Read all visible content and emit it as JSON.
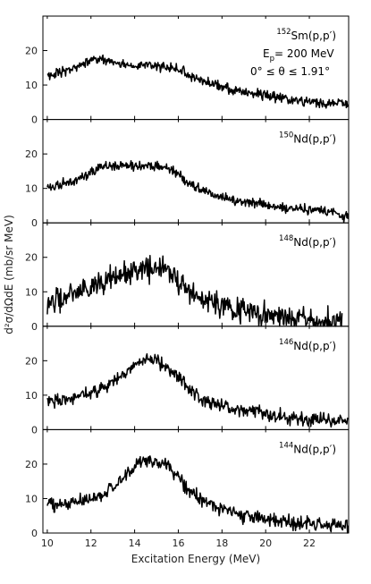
{
  "chart_data": {
    "type": "line",
    "xlabel": "Excitation Energy (MeV)",
    "ylabel": "d²σ/dΩdE (mb/sr MeV)",
    "xlim": [
      9.8,
      23.8
    ],
    "xticks": [
      10,
      12,
      14,
      16,
      18,
      20,
      22
    ],
    "grid": false,
    "legend": "none",
    "annotations": {
      "beam_energy_prefix": "E",
      "beam_energy_sub": "p",
      "beam_energy_value": "= 200 MeV",
      "angle_range": "0° ≤ θ ≤ 1.91°"
    },
    "panels": [
      {
        "label_mass": "152",
        "label_element": "Sm",
        "label_reaction": "(p,p′)",
        "ylim": [
          0,
          30
        ],
        "yticks": [
          0,
          10,
          20
        ],
        "x": [
          10,
          10.5,
          11,
          11.5,
          12,
          12.5,
          13,
          13.5,
          14,
          14.5,
          15,
          15.5,
          16,
          16.5,
          17,
          17.5,
          18,
          18.5,
          19,
          19.5,
          20,
          20.5,
          21,
          21.5,
          22,
          22.5,
          23,
          23.5,
          23.8
        ],
        "y": [
          12.5,
          13.5,
          14.5,
          15.5,
          17.5,
          17.5,
          16.5,
          16,
          15.5,
          15.5,
          15.5,
          15.5,
          14.5,
          13,
          11.5,
          10.5,
          9.5,
          8.5,
          8,
          7.5,
          7,
          6.5,
          6,
          5.5,
          5,
          4.8,
          4.5,
          4.5,
          4.5
        ],
        "noise": 1.0
      },
      {
        "label_mass": "150",
        "label_element": "Nd",
        "label_reaction": "(p,p′)",
        "ylim": [
          0,
          30
        ],
        "yticks": [
          0,
          10,
          20
        ],
        "x": [
          10,
          10.5,
          11,
          11.5,
          12,
          12.5,
          13,
          13.5,
          14,
          14.5,
          15,
          15.5,
          16,
          16.5,
          17,
          17.5,
          18,
          18.5,
          19,
          19.5,
          20,
          20.5,
          21,
          21.5,
          22,
          22.5,
          23,
          23.5,
          23.8
        ],
        "y": [
          10.5,
          11,
          12,
          13,
          15,
          16.5,
          16.5,
          16.5,
          16.5,
          16.5,
          16.5,
          16,
          14,
          11.5,
          10,
          8.5,
          7.5,
          6.5,
          6,
          5.5,
          5,
          4.5,
          4,
          3.8,
          3.8,
          3.5,
          3,
          2,
          1.5
        ],
        "noise": 1.0
      },
      {
        "label_mass": "148",
        "label_element": "Nd",
        "label_reaction": "(p,p′)",
        "ylim": [
          0,
          30
        ],
        "yticks": [
          0,
          10,
          20
        ],
        "x": [
          10,
          10.5,
          11,
          11.5,
          12,
          12.5,
          13,
          13.5,
          14,
          14.5,
          15,
          15.5,
          16,
          16.5,
          17,
          17.5,
          18,
          18.5,
          19,
          19.5,
          20,
          20.5,
          21,
          21.5,
          22,
          22.5,
          23,
          23.5
        ],
        "y": [
          6,
          8,
          9,
          10,
          11,
          12.5,
          14,
          15,
          16,
          16.5,
          16.5,
          15.5,
          13,
          10,
          8,
          7,
          6,
          5,
          4.5,
          4,
          3.5,
          3,
          2.5,
          2.3,
          2,
          1.8,
          1.5,
          1.5
        ],
        "noise": 2.4
      },
      {
        "label_mass": "146",
        "label_element": "Nd",
        "label_reaction": "(p,p′)",
        "ylim": [
          0,
          30
        ],
        "yticks": [
          0,
          10,
          20
        ],
        "x": [
          10,
          10.5,
          11,
          11.5,
          12,
          12.5,
          13,
          13.5,
          14,
          14.5,
          15,
          15.5,
          16,
          16.5,
          17,
          17.5,
          18,
          18.5,
          19,
          19.5,
          20,
          20.5,
          21,
          21.5,
          22,
          22.5,
          23,
          23.5,
          23.8
        ],
        "y": [
          8,
          8.5,
          9,
          10,
          11,
          12,
          13.5,
          16,
          18.5,
          20,
          20,
          18,
          15,
          12,
          9.5,
          8,
          7,
          6,
          5.5,
          5,
          4.5,
          4,
          3.5,
          3,
          3,
          2.8,
          2.5,
          2.5,
          2.5
        ],
        "noise": 1.4
      },
      {
        "label_mass": "144",
        "label_element": "Nd",
        "label_reaction": "(p,p′)",
        "ylim": [
          0,
          30
        ],
        "yticks": [
          0,
          10,
          20
        ],
        "x": [
          10,
          10.5,
          11,
          11.5,
          12,
          12.5,
          13,
          13.5,
          14,
          14.5,
          15,
          15.5,
          16,
          16.5,
          17,
          17.5,
          18,
          18.5,
          19,
          19.5,
          20,
          20.5,
          21,
          21.5,
          22,
          22.5,
          23,
          23.5,
          23.8
        ],
        "y": [
          8,
          8.5,
          9,
          9.5,
          10,
          11,
          13,
          16,
          19,
          21,
          21,
          19.5,
          16,
          12.5,
          10,
          8,
          7,
          6,
          5,
          4.5,
          4,
          3.5,
          3,
          2.8,
          2.5,
          2.3,
          2.2,
          2,
          2
        ],
        "noise": 1.4
      }
    ]
  }
}
